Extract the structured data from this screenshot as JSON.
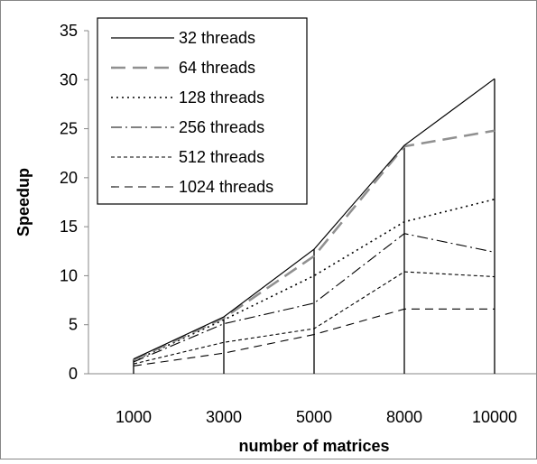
{
  "chart_data": {
    "type": "line",
    "title": "",
    "xlabel": "number of matrices",
    "ylabel": "Speedup",
    "categories": [
      "1000",
      "3000",
      "5000",
      "8000",
      "10000"
    ],
    "ylim": [
      0,
      35
    ],
    "yticks": [
      0,
      5,
      10,
      15,
      20,
      25,
      30,
      35
    ],
    "grid": false,
    "legend_position": "top-left",
    "drop_lines": true,
    "series": [
      {
        "name": "32 threads",
        "values": [
          1.5,
          5.8,
          12.7,
          23.3,
          30.1
        ],
        "color": "#000000",
        "dash": "solid",
        "width": 1.2
      },
      {
        "name": "64 threads",
        "values": [
          1.4,
          5.7,
          12.0,
          23.2,
          24.8
        ],
        "color": "#909090",
        "dash": "longdash",
        "width": 2.6
      },
      {
        "name": "128 threads",
        "values": [
          1.3,
          5.5,
          10.0,
          15.5,
          17.8
        ],
        "color": "#000000",
        "dash": "dot",
        "width": 1.6
      },
      {
        "name": "256 threads",
        "values": [
          1.2,
          5.1,
          7.2,
          14.3,
          12.4
        ],
        "color": "#000000",
        "dash": "dashdot",
        "width": 1.1
      },
      {
        "name": "512 threads",
        "values": [
          1.0,
          3.2,
          4.6,
          10.4,
          9.9
        ],
        "color": "#000000",
        "dash": "shortdash",
        "width": 1.1
      },
      {
        "name": "1024 threads",
        "values": [
          0.8,
          2.1,
          4.0,
          6.6,
          6.6
        ],
        "color": "#000000",
        "dash": "dash",
        "width": 1.1
      }
    ]
  }
}
